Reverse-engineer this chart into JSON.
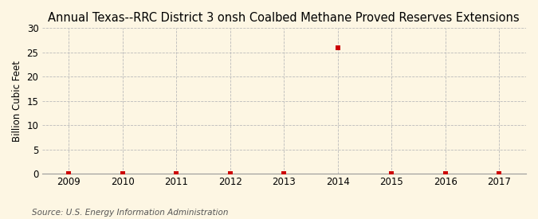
{
  "title": "Annual Texas--RRC District 3 onsh Coalbed Methane Proved Reserves Extensions",
  "ylabel": "Billion Cubic Feet",
  "source": "Source: U.S. Energy Information Administration",
  "background_color": "#fdf6e3",
  "plot_bg_color": "#fdf6e3",
  "x_values": [
    2009,
    2010,
    2011,
    2012,
    2013,
    2014,
    2015,
    2016,
    2017
  ],
  "y_values": [
    0.0,
    0.0,
    0.0,
    0.0,
    0.0,
    26.0,
    0.0,
    0.0,
    0.0
  ],
  "xlim": [
    2008.5,
    2017.5
  ],
  "ylim": [
    0,
    30
  ],
  "yticks": [
    0,
    5,
    10,
    15,
    20,
    25,
    30
  ],
  "xticks": [
    2009,
    2010,
    2011,
    2012,
    2013,
    2014,
    2015,
    2016,
    2017
  ],
  "marker_color": "#cc0000",
  "marker_size": 16,
  "marker_style": "s",
  "grid_color": "#bbbbbb",
  "grid_style": "--",
  "title_fontsize": 10.5,
  "ylabel_fontsize": 8.5,
  "tick_fontsize": 8.5,
  "source_fontsize": 7.5
}
